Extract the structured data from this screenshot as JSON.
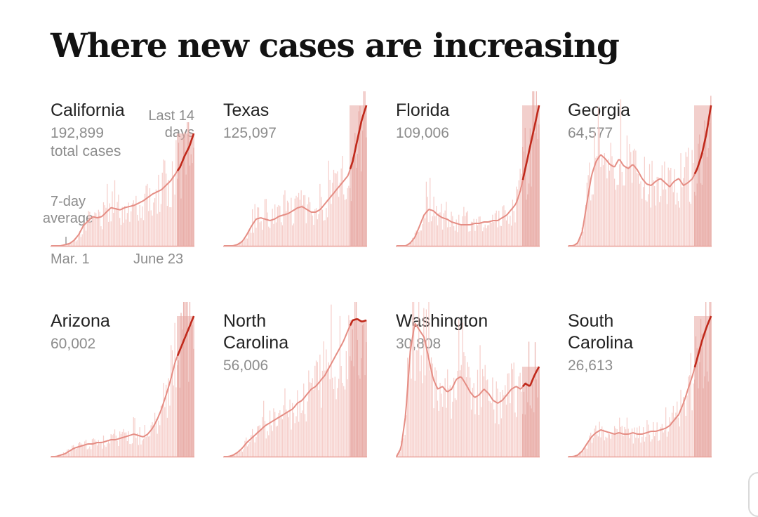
{
  "title": "Where new cases are increasing",
  "colors": {
    "bar": "#f5c7c2",
    "bar_recent": "#e8a8a2",
    "line": "#e58d84",
    "line_recent": "#c0291b",
    "baseline": "#e9a49c"
  },
  "annotations": {
    "last_days_line1": "Last 14",
    "last_days_line2": "days",
    "total_cases": "total cases",
    "avg_line1": "7-day",
    "avg_line2": "average",
    "start_date": "Mar. 1",
    "end_date": "June 23"
  },
  "states": [
    {
      "name": "California",
      "total": "192,899"
    },
    {
      "name": "Texas",
      "total": "125,097"
    },
    {
      "name": "Florida",
      "total": "109,006"
    },
    {
      "name": "Georgia",
      "total": "64,577"
    },
    {
      "name": "Arizona",
      "total": "60,002"
    },
    {
      "name_line1": "North",
      "name_line2": "Carolina",
      "total": "56,006"
    },
    {
      "name": "Washington",
      "total": "30,808"
    },
    {
      "name_line1": "South",
      "name_line2": "Carolina",
      "total": "26,613"
    }
  ],
  "chart_data": [
    {
      "type": "area",
      "title": "California",
      "x_labels": [
        "Mar. 1",
        "June 23"
      ],
      "recent_days": 14,
      "series": [
        {
          "name": "7-day average",
          "values": [
            0,
            0,
            0,
            1,
            2,
            5,
            10,
            18,
            22,
            26,
            25,
            26,
            30,
            34,
            33,
            32,
            34,
            35,
            36,
            38,
            40,
            43,
            46,
            48,
            50,
            54,
            58,
            64,
            70,
            80,
            88,
            100
          ]
        }
      ]
    },
    {
      "type": "area",
      "title": "Texas",
      "x_labels": [
        "Mar. 1",
        "June 23"
      ],
      "recent_days": 14,
      "series": [
        {
          "name": "7-day average",
          "values": [
            0,
            0,
            0,
            1,
            3,
            8,
            14,
            19,
            20,
            19,
            18,
            19,
            21,
            22,
            23,
            25,
            27,
            28,
            26,
            24,
            24,
            26,
            30,
            34,
            38,
            42,
            46,
            50,
            60,
            75,
            90,
            100
          ]
        }
      ]
    },
    {
      "type": "area",
      "title": "Florida",
      "x_labels": [
        "Mar. 1",
        "June 23"
      ],
      "recent_days": 14,
      "series": [
        {
          "name": "7-day average",
          "values": [
            0,
            0,
            0,
            2,
            6,
            14,
            22,
            26,
            25,
            22,
            20,
            19,
            17,
            16,
            15,
            15,
            15,
            16,
            16,
            17,
            17,
            18,
            18,
            20,
            22,
            26,
            30,
            40,
            55,
            70,
            85,
            100
          ]
        }
      ]
    },
    {
      "type": "area",
      "title": "Georgia",
      "x_labels": [
        "Mar. 1",
        "June 23"
      ],
      "recent_days": 14,
      "series": [
        {
          "name": "7-day average",
          "values": [
            0,
            0,
            2,
            10,
            30,
            50,
            60,
            65,
            62,
            58,
            56,
            62,
            57,
            55,
            58,
            54,
            48,
            44,
            43,
            46,
            48,
            45,
            42,
            46,
            48,
            43,
            45,
            48,
            55,
            65,
            80,
            100
          ]
        }
      ]
    },
    {
      "type": "area",
      "title": "Arizona",
      "x_labels": [
        "Mar. 1",
        "June 23"
      ],
      "recent_days": 14,
      "series": [
        {
          "name": "7-day average",
          "values": [
            0,
            0,
            1,
            2,
            4,
            6,
            7,
            8,
            9,
            9,
            10,
            10,
            11,
            12,
            12,
            13,
            14,
            15,
            16,
            15,
            14,
            16,
            20,
            26,
            34,
            44,
            55,
            68,
            76,
            84,
            92,
            100
          ]
        }
      ]
    },
    {
      "type": "area",
      "title": "North Carolina",
      "x_labels": [
        "Mar. 1",
        "June 23"
      ],
      "recent_days": 14,
      "series": [
        {
          "name": "7-day average",
          "values": [
            0,
            0,
            1,
            3,
            6,
            10,
            13,
            16,
            19,
            22,
            24,
            26,
            28,
            30,
            32,
            34,
            38,
            40,
            44,
            48,
            50,
            54,
            58,
            64,
            70,
            76,
            82,
            90,
            97,
            98,
            96,
            97
          ]
        }
      ]
    },
    {
      "type": "area",
      "title": "Washington",
      "x_labels": [
        "Mar. 1",
        "June 23"
      ],
      "recent_days": 14,
      "series": [
        {
          "name": "7-day average",
          "values": [
            0,
            6,
            30,
            75,
            95,
            90,
            85,
            70,
            55,
            48,
            50,
            46,
            48,
            55,
            57,
            52,
            46,
            42,
            44,
            48,
            45,
            40,
            38,
            40,
            44,
            48,
            50,
            48,
            52,
            50,
            58,
            64
          ]
        }
      ]
    },
    {
      "type": "area",
      "title": "South Carolina",
      "x_labels": [
        "Mar. 1",
        "June 23"
      ],
      "recent_days": 14,
      "series": [
        {
          "name": "7-day average",
          "values": [
            0,
            0,
            1,
            4,
            9,
            14,
            17,
            19,
            18,
            17,
            16,
            17,
            16,
            16,
            17,
            16,
            16,
            17,
            18,
            18,
            19,
            20,
            22,
            26,
            30,
            38,
            48,
            58,
            70,
            82,
            92,
            100
          ]
        }
      ]
    }
  ]
}
